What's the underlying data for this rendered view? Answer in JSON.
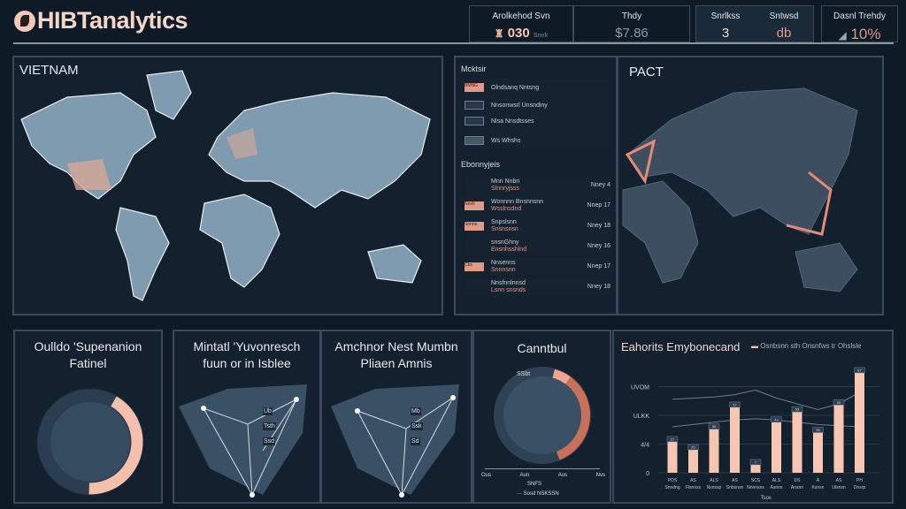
{
  "app": {
    "title": "HIBTanalytics"
  },
  "kpis": [
    {
      "label": "Arolkehod Svn",
      "value": "030",
      "sub": "Smrk"
    },
    {
      "label": "Thdy",
      "value": "$7.86"
    },
    {
      "label": "Snrlkss",
      "value": "3"
    },
    {
      "label": "Sntwsd",
      "value": "db"
    },
    {
      "label": "Dasnl Trehdy",
      "value": "10%"
    }
  ],
  "map_left": {
    "title": "VIETNAM"
  },
  "map_right": {
    "title": "PACT"
  },
  "list_panel": {
    "section1": "Mcktsir",
    "items1": [
      {
        "tag": "BMNG",
        "label": "Olndsanq Nntsng"
      },
      {
        "tag": "",
        "label": "Nnsonwsrl Unsndiny"
      },
      {
        "tag": "",
        "label": "Nlsa Nnsdtsses"
      },
      {
        "tag": "",
        "label": "Ws Whshs"
      }
    ],
    "section2": "Ebonnyjeis",
    "items2": [
      {
        "tag": "",
        "title": "Mnn Nnbn",
        "sub": "Slnnryjsss",
        "count": "Nney 4"
      },
      {
        "tag": "Nnsh",
        "title": "Wonnnn Bnsnnsnn",
        "sub": "Wsslnsdnd",
        "count": "Nnep 17"
      },
      {
        "tag": "Snnne",
        "title": "Snpslsnn",
        "sub": "Snsnsnsn",
        "count": "Nney 18"
      },
      {
        "tag": "",
        "title": "snsnGhny",
        "sub": "Ensnhsshlnd",
        "count": "Nney 16"
      },
      {
        "tag": "Cbs",
        "title": "Nnsenns",
        "sub": "Snnnsnn",
        "count": "Nnep 17"
      },
      {
        "tag": "",
        "title": "Nnsfnnlnnsd",
        "sub": "Lsnn snsnds",
        "count": "Nney 18"
      }
    ]
  },
  "gauge": {
    "title_line1": "Oulldo 'Supenanion",
    "title_line2": "Fatinel",
    "value": 0.42
  },
  "network1": {
    "title_line1": "Mintatl 'Yuvonresch",
    "title_line2": "fuun or in Isblee",
    "labels": [
      "Ub",
      "Tsth",
      "Ssd"
    ]
  },
  "network2": {
    "title_line1": "Amchnor Nest Mumbn",
    "title_line2": "Pliaen Amnis",
    "labels": [
      "Mb",
      "Ssk",
      "Sd"
    ]
  },
  "donut": {
    "title": "Canntbul",
    "center": "SSbt",
    "axis": [
      "Ous",
      "Aun",
      "Aus",
      "Nvs"
    ],
    "axis_title": "SNFS",
    "legend": "Sosd NSKSSN"
  },
  "chart_data": {
    "type": "bar",
    "title": "Eahorits Emybonecand",
    "legend": [
      "Osnbsnn sth Onsnfws tr Ohslsle"
    ],
    "ylabel": "",
    "xlabel": "Tsos",
    "yticks": [
      "0",
      "4/4",
      "ULKK",
      "UVOM"
    ],
    "ytick_values": [
      0,
      25,
      50,
      75
    ],
    "ylim": [
      0,
      100
    ],
    "categories": [
      "Snndng",
      "Flsnnss",
      "Nsnssp",
      "Snbsnsn",
      "Nnnnsns",
      "Asnsn",
      "Ansnn",
      "Ksnsn",
      "Ulsnsn",
      "Dnsrp"
    ],
    "cat_codes": [
      "POS",
      "AS",
      "ALS",
      "AS",
      "SCS",
      "ALS",
      "DS",
      "A",
      "AS",
      "PH"
    ],
    "values": [
      27,
      20,
      38,
      57,
      7,
      44,
      53,
      35,
      59,
      87
    ],
    "value_labels": [
      "27",
      "20",
      "38",
      "57",
      "7",
      "44",
      "53",
      "35",
      "59",
      "87"
    ],
    "series_lines": [
      {
        "name": "upper",
        "values": [
          64,
          65,
          66,
          68,
          72,
          65,
          60,
          55,
          60,
          70
        ]
      },
      {
        "name": "lower",
        "values": [
          40,
          42,
          44,
          46,
          47,
          46,
          44,
          42,
          41,
          40
        ]
      }
    ]
  },
  "colors": {
    "accent": "#f4c0ac",
    "accent_dark": "#c8705a",
    "land": "#7f9bb0",
    "panel": "#13202e",
    "border": "#3a4a5a"
  }
}
